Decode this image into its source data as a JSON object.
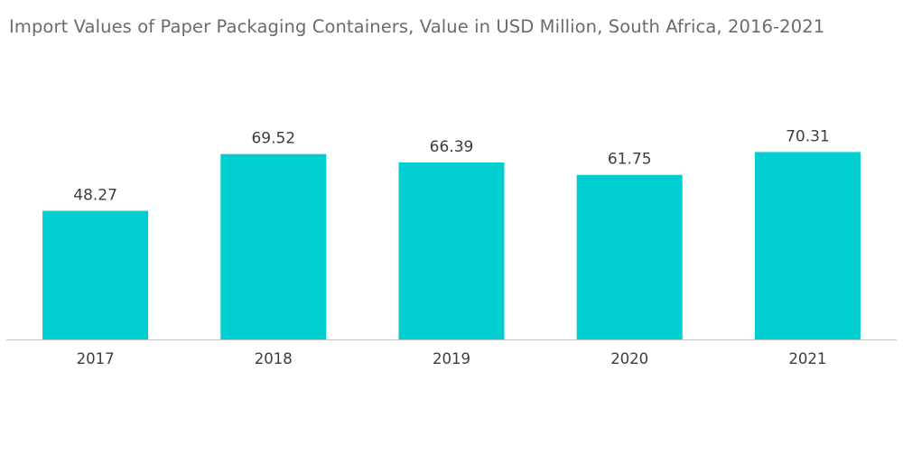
{
  "chart_data": {
    "type": "bar",
    "title": "Import Values of Paper Packaging Containers, Value in USD Million, South Africa, 2016-2021",
    "categories": [
      "2017",
      "2018",
      "2019",
      "2020",
      "2021"
    ],
    "values": [
      48.27,
      69.52,
      66.39,
      61.75,
      70.31
    ],
    "value_labels": [
      "48.27",
      "69.52",
      "66.39",
      "61.75",
      "70.31"
    ],
    "xlabel": "",
    "ylabel": "",
    "ylim": [
      0,
      75
    ],
    "grid": false,
    "bar_color": "#00ced1",
    "axis_color": "#c7c7c7"
  }
}
